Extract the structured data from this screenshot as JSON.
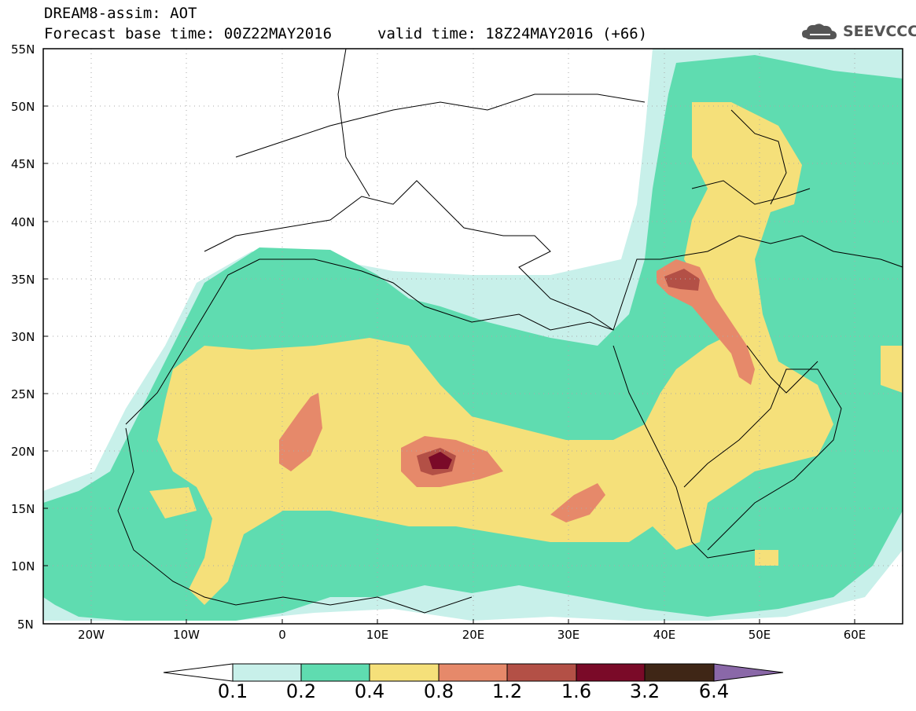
{
  "header": {
    "line1": "DREAM8-assim: AOT",
    "line2": "Forecast base time: 00Z22MAY2016",
    "valid": "valid time: 18Z24MAY2016 (+66)",
    "logo_text": "SEEVCCC"
  },
  "map": {
    "lat_labels": [
      "55N",
      "50N",
      "45N",
      "40N",
      "35N",
      "30N",
      "25N",
      "20N",
      "15N",
      "10N",
      "5N"
    ],
    "lon_labels": [
      "20W",
      "10W",
      "0",
      "10E",
      "20E",
      "30E",
      "40E",
      "50E",
      "60E"
    ],
    "lon_range": [
      -25,
      65
    ],
    "lat_range": [
      5,
      55
    ],
    "grid": "dotted"
  },
  "colorbar": {
    "levels": [
      "0.1",
      "0.2",
      "0.4",
      "0.8",
      "1.2",
      "1.6",
      "3.2",
      "6.4"
    ],
    "colors": [
      "#ffffff",
      "#c8f0ea",
      "#5fdcb0",
      "#f5e07a",
      "#e6896a",
      "#b35046",
      "#7a0a28",
      "#3f2616",
      "#8a68a8"
    ]
  },
  "colors": {
    "c1": "#c8f0ea",
    "c2": "#5fdcb0",
    "c3": "#f5e07a",
    "c4": "#e6896a",
    "c5": "#b35046",
    "c6": "#7a0a28"
  }
}
